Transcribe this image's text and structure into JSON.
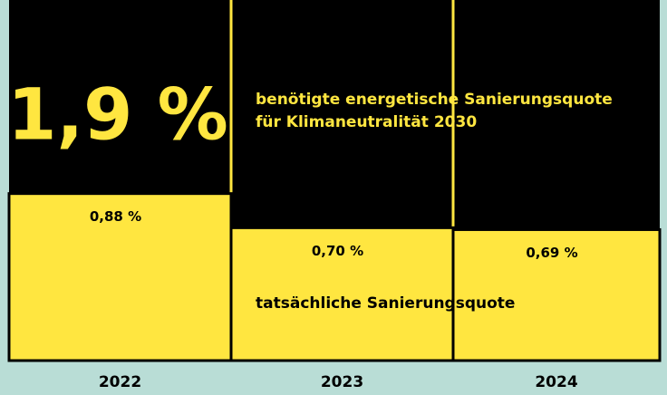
{
  "chart_data": {
    "type": "bar",
    "categories": [
      "2022",
      "2023",
      "2024"
    ],
    "values": [
      0.88,
      0.7,
      0.69
    ],
    "value_labels": [
      "0,88 %",
      "0,70 %",
      "0,69 %"
    ],
    "color": "#ffe640",
    "ylim": [
      0,
      1.9
    ],
    "target": {
      "value": 1.9,
      "label": "1,9 %",
      "color": "#000000",
      "text": [
        "benötigte energetische Sanierungsquote",
        "für Klimaneutralität 2030"
      ]
    },
    "series_label": "tatsächliche Sanierungsquote"
  }
}
